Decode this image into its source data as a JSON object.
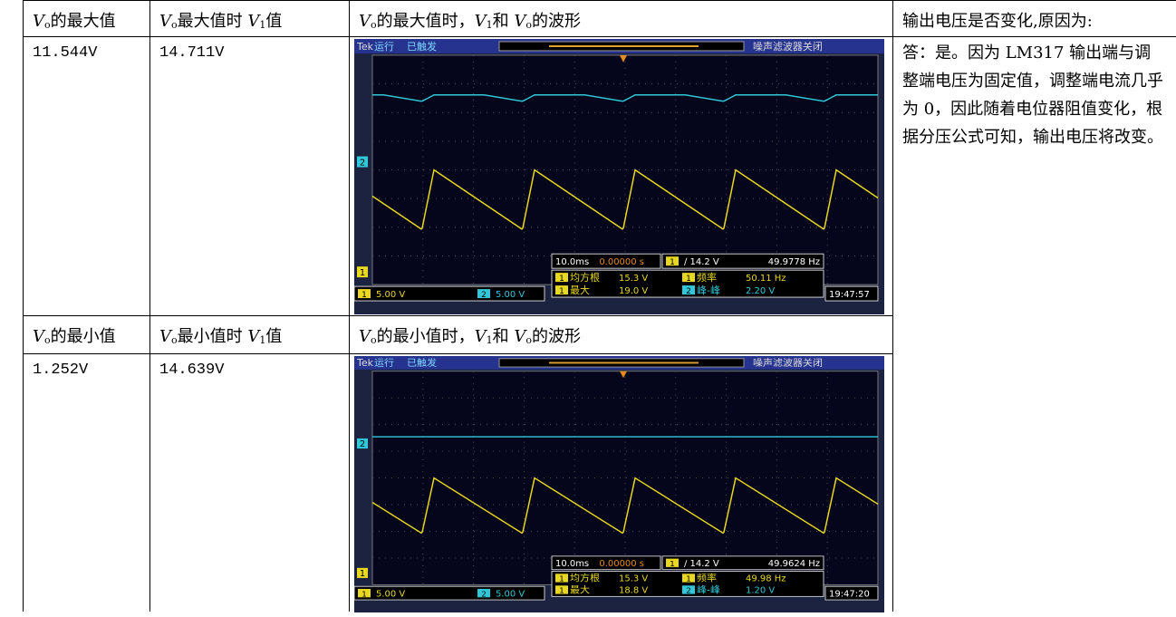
{
  "table": {
    "headers_top": [
      [
        "V",
        "o",
        "的最大值"
      ],
      [
        "V",
        "o",
        "最大值时 ",
        "V",
        "1",
        "值"
      ],
      [
        "V",
        "o",
        "的最大值时，",
        "V",
        "1",
        "和 ",
        "V",
        "o",
        "的波形"
      ]
    ],
    "values_top": [
      "11.544V",
      "14.711V"
    ],
    "headers_bottom": [
      [
        "V",
        "o",
        "的最小值"
      ],
      [
        "V",
        "o",
        "最小值时 ",
        "V",
        "1",
        "值"
      ],
      [
        "V",
        "o",
        "的最小值时，",
        "V",
        "1",
        "和 ",
        "V",
        "o",
        "的波形"
      ]
    ],
    "values_bottom": [
      "1.252V",
      "14.639V"
    ],
    "question": "输出电压是否变化,原因为:",
    "answer": "答：是。因为 LM317 输出端与调整端电压为固定值，调整端电流几乎为 0，因此随着电位器阻值变化，根据分压公式可知，输出电压将改变。"
  },
  "scopes": [
    {
      "brand": "Tek",
      "status": "运行",
      "trigger": "已触发",
      "filter": "噪声滤波器关闭",
      "ch1": "1",
      "ch2": "2",
      "timebase": "10.0ms",
      "position": "0.00000 s",
      "trig_level": "∕ 14.2 V",
      "trig_freq": "49.9778 Hz",
      "ch1_scale": "5.00 V",
      "ch2_scale": "5.00 V",
      "meas": [
        {
          "name": "均方根",
          "value": "15.3 V"
        },
        {
          "name": "频率",
          "value": "50.11 Hz"
        },
        {
          "name": "最大",
          "value": "19.0 V"
        },
        {
          "name": "峰-峰",
          "value": "2.20 V"
        }
      ],
      "time": "19:47:57"
    },
    {
      "brand": "Tek",
      "status": "运行",
      "trigger": "已触发",
      "filter": "噪声滤波器关闭",
      "ch1": "1",
      "ch2": "2",
      "timebase": "10.0ms",
      "position": "0.00000 s",
      "trig_level": "∕ 14.2 V",
      "trig_freq": "49.9624 Hz",
      "ch1_scale": "5.00 V",
      "ch2_scale": "5.00 V",
      "meas": [
        {
          "name": "均方根",
          "value": "15.3 V"
        },
        {
          "name": "频率",
          "value": "49.98 Hz"
        },
        {
          "name": "最大",
          "value": "18.8 V"
        },
        {
          "name": "峰-峰",
          "value": "1.20 V"
        }
      ],
      "time": "19:47:20"
    }
  ]
}
